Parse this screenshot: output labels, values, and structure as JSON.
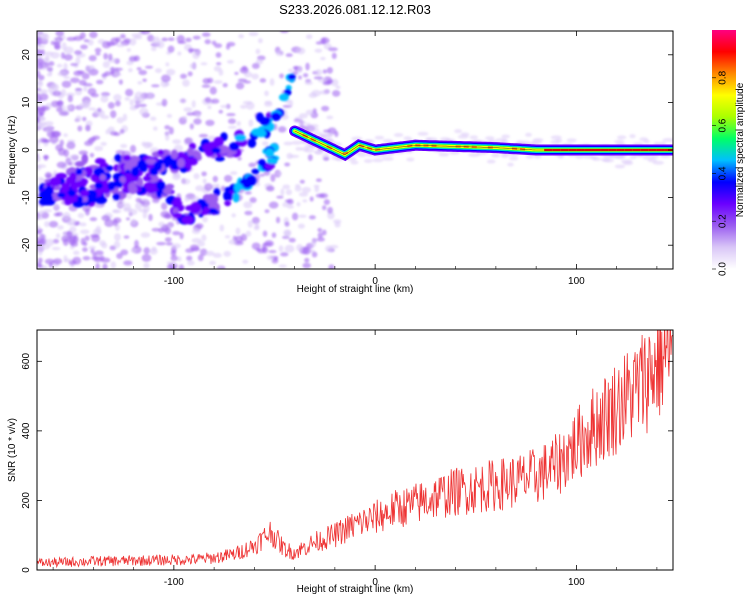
{
  "chart_data": [
    {
      "type": "heatmap",
      "title": "S233.2026.081.12.12.R03",
      "xlabel": "Height of straight line (km)",
      "ylabel": "Frequency (Hz)",
      "xlim": [
        -168,
        148
      ],
      "ylim": [
        -25,
        25
      ],
      "xticks": [
        -100,
        0,
        100
      ],
      "yticks": [
        -20,
        -10,
        0,
        10,
        20
      ],
      "colorbar": {
        "label": "Normalized spectral amplitude",
        "range": [
          0.0,
          1.0
        ],
        "ticks": [
          "0.0",
          "0.2",
          "0.4",
          "0.6",
          "0.8"
        ],
        "colors": [
          "#ffffff",
          "#d9c6f7",
          "#9a5cf0",
          "#6a00ff",
          "#0000ff",
          "#00bfff",
          "#00ff66",
          "#aaff00",
          "#ffff00",
          "#ff8800",
          "#ff0000",
          "#ff0080"
        ]
      },
      "ridge_description": "Dispersive ridge: two diverging branches from about -160 km up to about -40 km, then a flat tone near 0 Hz from -40 km to 148 km with peak amplitude ~0.9",
      "ridge_points": {
        "upper_branch": [
          [
            -165,
            -8
          ],
          [
            -140,
            -4
          ],
          [
            -110,
            -3
          ],
          [
            -85,
            -1
          ],
          [
            -70,
            1
          ],
          [
            -55,
            5
          ],
          [
            -45,
            10
          ],
          [
            -40,
            17
          ]
        ],
        "lower_branch": [
          [
            -165,
            -10
          ],
          [
            -140,
            -9
          ],
          [
            -110,
            -6
          ],
          [
            -95,
            -14
          ],
          [
            -80,
            -11
          ],
          [
            -65,
            -7
          ],
          [
            -50,
            -1
          ]
        ],
        "carrier": [
          [
            -40,
            4
          ],
          [
            -30,
            2
          ],
          [
            -20,
            0
          ],
          [
            -15,
            -1
          ],
          [
            -8,
            1
          ],
          [
            0,
            0
          ],
          [
            20,
            1
          ],
          [
            60,
            0.5
          ],
          [
            80,
            0
          ],
          [
            148,
            0
          ]
        ]
      }
    },
    {
      "type": "line",
      "xlabel": "Height of straight line (km)",
      "ylabel": "SNR (10 * v/v)",
      "xlim": [
        -168,
        148
      ],
      "ylim": [
        0,
        690
      ],
      "xticks": [
        -100,
        0,
        100
      ],
      "yticks": [
        0,
        200,
        400,
        600
      ],
      "series": [
        {
          "name": "SNR",
          "color": "#ee3333",
          "x": [
            -168,
            -140,
            -110,
            -90,
            -80,
            -70,
            -60,
            -52,
            -45,
            -40,
            -30,
            -20,
            -10,
            0,
            10,
            20,
            30,
            40,
            50,
            60,
            70,
            80,
            90,
            100,
            110,
            120,
            130,
            140,
            148
          ],
          "y": [
            20,
            25,
            28,
            30,
            35,
            45,
            70,
            110,
            60,
            50,
            80,
            100,
            130,
            150,
            175,
            190,
            210,
            225,
            235,
            245,
            255,
            270,
            300,
            360,
            420,
            470,
            520,
            590,
            645
          ]
        }
      ]
    }
  ]
}
